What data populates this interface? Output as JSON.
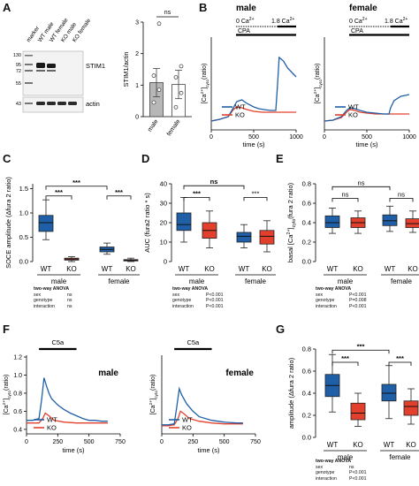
{
  "panels": {
    "A": {
      "label": "A",
      "lane_labels": [
        "marker",
        "WT male",
        "WT female",
        "KO male",
        "KO female"
      ],
      "marker_sizes": [
        "130",
        "95",
        "72",
        "55",
        "43"
      ],
      "bands": [
        "STIM1",
        "actin"
      ],
      "chart": {
        "ylabel": "STIM1/actin",
        "categories": [
          "male",
          "female"
        ],
        "yticks": [
          "0",
          "1",
          "2",
          "3"
        ],
        "sig": "ns"
      }
    },
    "B": {
      "label": "B",
      "subpanels": [
        {
          "title": "male",
          "cond1": "0 Ca",
          "cond2": "1.8 Ca",
          "sup": "2+",
          "cpa": "CPA"
        },
        {
          "title": "female",
          "cond1": "0 Ca",
          "cond2": "1.8 Ca",
          "sup": "2+",
          "cpa": "CPA"
        }
      ],
      "ylabel": "[Ca2+]cyto (ratio)",
      "xlabel": "time (s)",
      "xticks": [
        "0",
        "500",
        "1000"
      ],
      "legend": [
        "WT",
        "KO"
      ]
    },
    "C": {
      "label": "C",
      "ylabel": "SOCE amplitude (Δfura 2 ratio)",
      "yticks": [
        "0.0",
        "0.5",
        "1.0",
        "1.5"
      ],
      "groups": [
        "male",
        "female"
      ],
      "genotypes": [
        "WT",
        "KO",
        "WT",
        "KO"
      ],
      "sig": [
        "***",
        "***",
        "***"
      ],
      "stats": {
        "title": "two-way ANOVA",
        "rows": [
          [
            "sex",
            "ns"
          ],
          [
            "genotype",
            "ns"
          ],
          [
            "interaction",
            "ns"
          ]
        ]
      }
    },
    "D": {
      "label": "D",
      "ylabel": "AUC (fura2 ratio * s)",
      "yticks": [
        "0",
        "10",
        "20",
        "30",
        "40"
      ],
      "groups": [
        "male",
        "female"
      ],
      "genotypes": [
        "WT",
        "KO",
        "WT",
        "KO"
      ],
      "sig": [
        "***",
        "***",
        "ns"
      ],
      "stats": {
        "title": "two-way ANOVA",
        "rows": [
          [
            "sex",
            "P<0.001"
          ],
          [
            "genotype",
            "P<0.001"
          ],
          [
            "interaction",
            "P<0.001"
          ]
        ]
      }
    },
    "E": {
      "label": "E",
      "ylabel": "basal [Ca2+]cyto (fura 2 ratio)",
      "yticks": [
        "0.0",
        "0.2",
        "0.4",
        "0.6",
        "0.8"
      ],
      "groups": [
        "male",
        "female"
      ],
      "genotypes": [
        "WT",
        "KO",
        "WT",
        "KO"
      ],
      "sig": [
        "ns",
        "ns",
        "ns"
      ],
      "stats": {
        "title": "two-way ANOVA",
        "rows": [
          [
            "sex",
            "P<0.001"
          ],
          [
            "genotype",
            "P=0.008"
          ],
          [
            "interaction",
            "P<0.001"
          ]
        ]
      }
    },
    "F": {
      "label": "F",
      "subpanels": [
        {
          "title": "male",
          "stim": "C5a"
        },
        {
          "title": "female",
          "stim": "C5a"
        }
      ],
      "ylabel": "[Ca2+]cyto (ratio)",
      "xlabel": "time (s)",
      "xticks": [
        "0",
        "250",
        "500",
        "750"
      ],
      "yticks": [
        "0.4",
        "0.6",
        "0.8",
        "1.0",
        "1.2"
      ],
      "legend": [
        "WT",
        "KO"
      ]
    },
    "G": {
      "label": "G",
      "ylabel": "amplitude (Δfura 2 ratio)",
      "yticks": [
        "0.0",
        "0.2",
        "0.4",
        "0.6",
        "0.8"
      ],
      "groups": [
        "male",
        "female"
      ],
      "genotypes": [
        "WT",
        "KO",
        "WT",
        "KO"
      ],
      "sig": [
        "***",
        "***",
        "***"
      ],
      "stats": {
        "title": "two-way ANOVA",
        "rows": [
          [
            "sex",
            "ns"
          ],
          [
            "genotype",
            "P<0.001"
          ],
          [
            "interaction",
            "P<0.001"
          ]
        ]
      }
    }
  },
  "colors": {
    "wt": "#1f5fa8",
    "ko": "#e2402c",
    "bar": "#b7b7b7"
  },
  "chart_data": [
    {
      "type": "bar",
      "panel": "A",
      "categories": [
        "male",
        "female"
      ],
      "values": [
        1.08,
        1.02
      ],
      "ylim": [
        0,
        3
      ]
    },
    {
      "type": "box",
      "panel": "C",
      "categories": [
        "male WT",
        "male KO",
        "female WT",
        "female KO"
      ],
      "stats": [
        [
          0.45,
          0.62,
          0.8,
          0.95,
          1.27
        ],
        [
          0.0,
          0.03,
          0.05,
          0.07,
          0.1
        ],
        [
          0.15,
          0.2,
          0.25,
          0.3,
          0.38
        ],
        [
          0.0,
          0.02,
          0.03,
          0.04,
          0.07
        ]
      ],
      "ylim": [
        0,
        1.6
      ]
    },
    {
      "type": "box",
      "panel": "D",
      "categories": [
        "male WT",
        "male KO",
        "female WT",
        "female KO"
      ],
      "stats": [
        [
          10,
          16,
          19,
          25,
          33
        ],
        [
          7,
          12,
          16,
          20,
          26
        ],
        [
          7,
          10,
          13,
          15,
          19
        ],
        [
          5,
          9,
          13,
          16,
          21
        ]
      ],
      "ylim": [
        0,
        40
      ]
    },
    {
      "type": "box",
      "panel": "E",
      "categories": [
        "male WT",
        "male KO",
        "female WT",
        "female KO"
      ],
      "stats": [
        [
          0.29,
          0.35,
          0.4,
          0.47,
          0.55
        ],
        [
          0.29,
          0.35,
          0.4,
          0.45,
          0.52
        ],
        [
          0.31,
          0.37,
          0.42,
          0.48,
          0.57
        ],
        [
          0.3,
          0.35,
          0.39,
          0.44,
          0.52
        ]
      ],
      "ylim": [
        0,
        0.8
      ]
    },
    {
      "type": "box",
      "panel": "G",
      "categories": [
        "male WT",
        "male KO",
        "female WT",
        "female KO"
      ],
      "stats": [
        [
          0.23,
          0.37,
          0.47,
          0.57,
          0.75
        ],
        [
          0.1,
          0.16,
          0.22,
          0.31,
          0.4
        ],
        [
          0.17,
          0.33,
          0.4,
          0.48,
          0.65
        ],
        [
          0.12,
          0.2,
          0.28,
          0.33,
          0.44
        ]
      ],
      "ylim": [
        0,
        0.8
      ]
    },
    {
      "type": "line",
      "panel": "B-male",
      "xlim": [
        0,
        1000
      ],
      "ylim": [
        0.3,
        1.35
      ],
      "series": [
        {
          "name": "WT",
          "x": [
            0,
            100,
            200,
            260,
            300,
            360,
            420,
            500,
            560,
            620,
            700,
            760,
            780,
            800,
            850,
            900,
            1000
          ],
          "y": [
            0.4,
            0.42,
            0.45,
            0.55,
            0.62,
            0.64,
            0.6,
            0.56,
            0.54,
            0.53,
            0.52,
            0.52,
            0.8,
            1.12,
            1.08,
            1.0,
            0.9
          ]
        },
        {
          "name": "KO",
          "x": [
            0,
            100,
            200,
            260,
            300,
            360,
            420,
            500,
            600,
            700,
            800,
            900,
            1000
          ],
          "y": [
            0.4,
            0.42,
            0.45,
            0.53,
            0.56,
            0.55,
            0.53,
            0.51,
            0.5,
            0.5,
            0.5,
            0.5,
            0.5
          ]
        }
      ]
    },
    {
      "type": "line",
      "panel": "B-female",
      "xlim": [
        0,
        1000
      ],
      "ylim": [
        0.3,
        1.35
      ],
      "series": [
        {
          "name": "WT",
          "x": [
            0,
            100,
            200,
            260,
            300,
            360,
            420,
            500,
            600,
            700,
            760,
            780,
            820,
            900,
            1000
          ],
          "y": [
            0.4,
            0.41,
            0.45,
            0.52,
            0.55,
            0.54,
            0.52,
            0.5,
            0.49,
            0.48,
            0.48,
            0.55,
            0.63,
            0.68,
            0.7
          ]
        },
        {
          "name": "KO",
          "x": [
            0,
            100,
            200,
            260,
            300,
            360,
            420,
            500,
            600,
            700,
            800,
            900,
            1000
          ],
          "y": [
            0.4,
            0.41,
            0.44,
            0.5,
            0.53,
            0.52,
            0.5,
            0.49,
            0.48,
            0.48,
            0.48,
            0.48,
            0.48
          ]
        }
      ]
    },
    {
      "type": "line",
      "panel": "F-male",
      "xlim": [
        0,
        750
      ],
      "ylim": [
        0.35,
        1.22
      ],
      "series": [
        {
          "name": "WT",
          "x": [
            0,
            50,
            100,
            120,
            140,
            160,
            180,
            200,
            250,
            300,
            350,
            400,
            450,
            500,
            550,
            600,
            650
          ],
          "y": [
            0.5,
            0.5,
            0.52,
            0.72,
            0.97,
            0.88,
            0.8,
            0.74,
            0.67,
            0.62,
            0.58,
            0.55,
            0.52,
            0.5,
            0.5,
            0.49,
            0.49
          ]
        },
        {
          "name": "KO",
          "x": [
            0,
            50,
            100,
            130,
            150,
            180,
            220,
            300,
            400,
            500,
            600,
            650
          ],
          "y": [
            0.47,
            0.47,
            0.47,
            0.52,
            0.58,
            0.55,
            0.5,
            0.48,
            0.47,
            0.47,
            0.47,
            0.47
          ]
        }
      ]
    },
    {
      "type": "line",
      "panel": "F-female",
      "xlim": [
        0,
        750
      ],
      "ylim": [
        0.35,
        1.22
      ],
      "series": [
        {
          "name": "WT",
          "x": [
            0,
            50,
            100,
            120,
            140,
            160,
            200,
            250,
            300,
            400,
            500,
            600,
            650
          ],
          "y": [
            0.45,
            0.45,
            0.46,
            0.65,
            0.85,
            0.78,
            0.68,
            0.6,
            0.54,
            0.5,
            0.48,
            0.47,
            0.47
          ]
        },
        {
          "name": "KO",
          "x": [
            0,
            50,
            100,
            130,
            150,
            180,
            220,
            300,
            400,
            500,
            600,
            650
          ],
          "y": [
            0.44,
            0.44,
            0.45,
            0.52,
            0.6,
            0.57,
            0.52,
            0.49,
            0.47,
            0.46,
            0.46,
            0.46
          ]
        }
      ]
    }
  ]
}
